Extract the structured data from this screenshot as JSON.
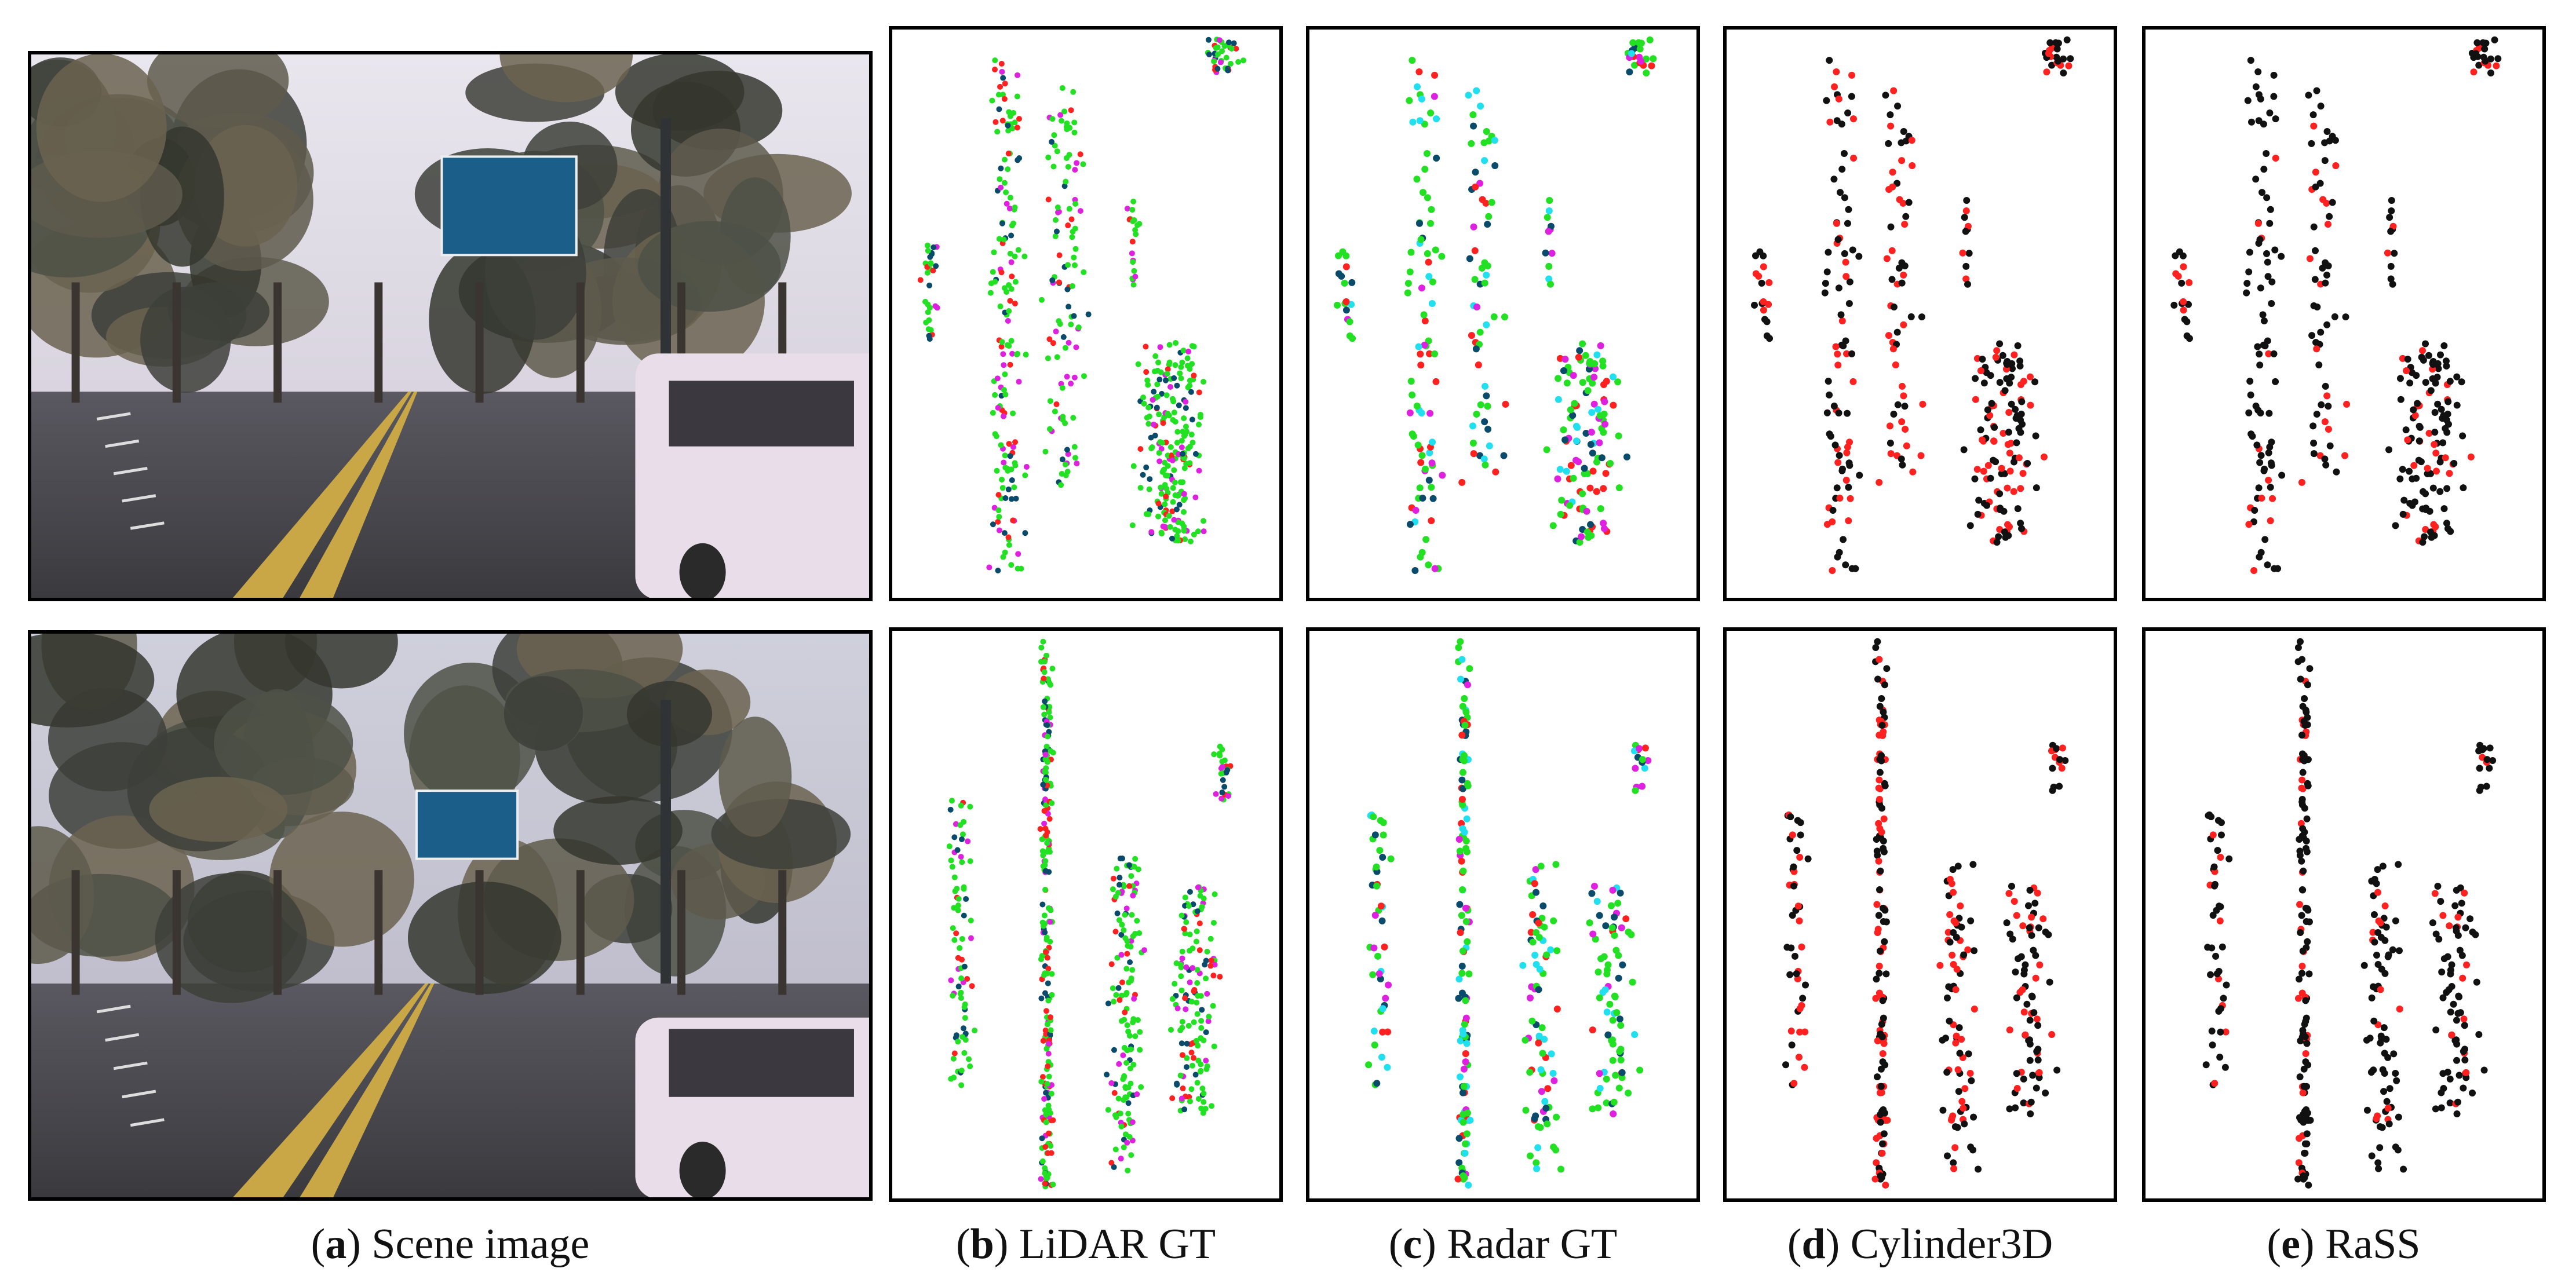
{
  "panels": [
    {
      "caption": [
        "(",
        "a",
        ") Scene image"
      ]
    },
    {
      "caption": [
        "(",
        "b",
        ") LiDAR GT"
      ]
    },
    {
      "caption": [
        "(",
        "c",
        ") Radar GT"
      ]
    },
    {
      "caption": [
        "(",
        "d",
        ") Cylinder3D"
      ]
    },
    {
      "caption": [
        "(",
        "e",
        ") RaSS"
      ]
    }
  ]
}
